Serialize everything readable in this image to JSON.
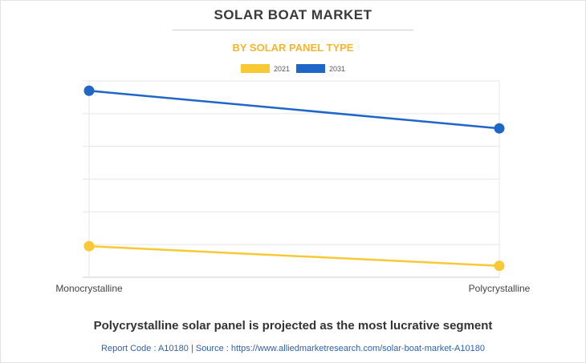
{
  "header": {
    "title": "SOLAR BOAT MARKET",
    "subtitle": "BY SOLAR PANEL TYPE"
  },
  "chart_data": {
    "type": "line",
    "title": "SOLAR BOAT MARKET",
    "subtitle": "BY SOLAR PANEL TYPE",
    "categories": [
      "Monocrystalline",
      "Polycrystalline"
    ],
    "ylim": [
      0,
      6
    ],
    "grid": true,
    "legend": "top-center",
    "xlabel": "",
    "ylabel": "",
    "series": [
      {
        "name": "2021",
        "color": "#f7c935",
        "values": [
          0.95,
          0.35
        ]
      },
      {
        "name": "2031",
        "color": "#1e66c8",
        "values": [
          5.7,
          4.55
        ]
      }
    ]
  },
  "footer": {
    "headline": "Polycrystalline solar panel is projected as the most lucrative segment",
    "source": "Report Code : A10180  |  Source : https://www.alliedmarketresearch.com/solar-boat-market-A10180"
  }
}
